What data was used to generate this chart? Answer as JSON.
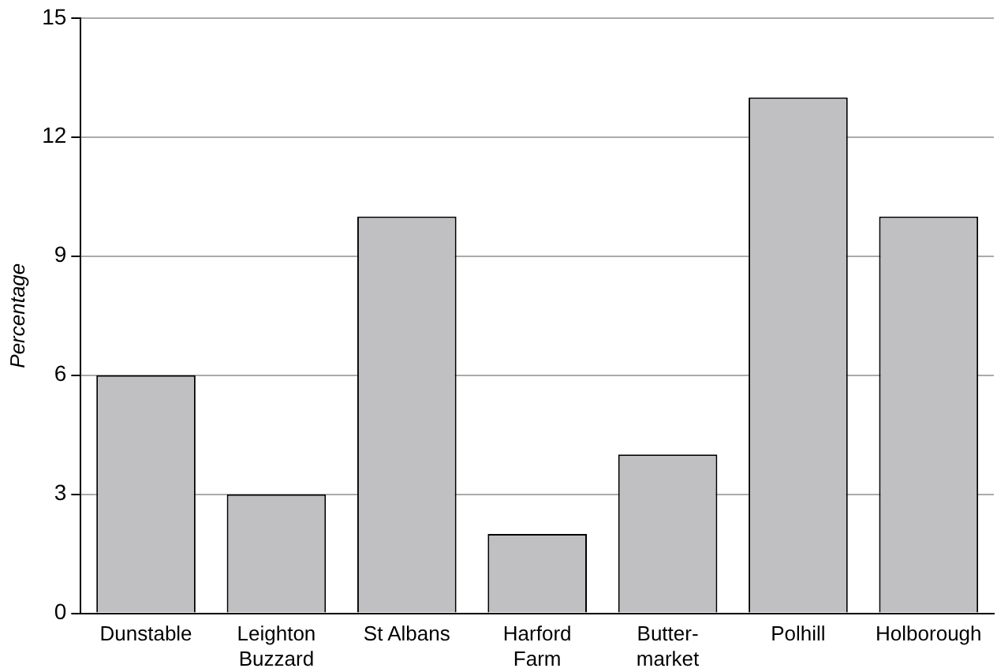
{
  "chart_data": {
    "type": "bar",
    "ylabel": "Percentage",
    "categories": [
      "Dunstable",
      "Leighton\nBuzzard",
      "St Albans",
      "Harford\nFarm",
      "Butter-\nmarket",
      "Polhill",
      "Holborough"
    ],
    "values": [
      6,
      3,
      10,
      2,
      4,
      13,
      10
    ],
    "color": "#c0c0c2",
    "ylim": [
      0,
      15
    ],
    "yticks": [
      0,
      3,
      6,
      9,
      12,
      15
    ],
    "grid": "y"
  }
}
